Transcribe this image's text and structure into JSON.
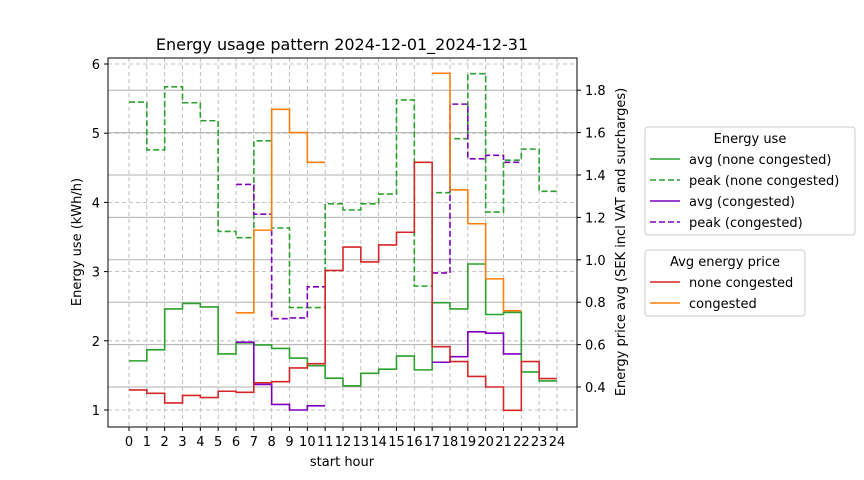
{
  "chart_data": {
    "type": "line",
    "title": "Energy usage pattern 2024-12-01_2024-12-31",
    "xlabel": "start hour",
    "ylabel": "Energy use (kWh/h)",
    "y2label": "Energy price avg (SEK incl VAT and surcharges)",
    "x": [
      0,
      1,
      2,
      3,
      4,
      5,
      6,
      7,
      8,
      9,
      10,
      11,
      12,
      13,
      14,
      15,
      16,
      17,
      18,
      19,
      20,
      21,
      22,
      23
    ],
    "xticks": [
      "0",
      "1",
      "2",
      "3",
      "4",
      "5",
      "6",
      "7",
      "8",
      "9",
      "10",
      "11",
      "12",
      "13",
      "14",
      "15",
      "16",
      "17",
      "18",
      "19",
      "20",
      "21",
      "22",
      "23",
      "24"
    ],
    "yticks": [
      "1",
      "2",
      "3",
      "4",
      "5",
      "6"
    ],
    "y2ticks": [
      "0.4",
      "0.6",
      "0.8",
      "1.0",
      "1.2",
      "1.4",
      "1.6",
      "1.8"
    ],
    "ylim": [
      0.78,
      6.08
    ],
    "y2lim": [
      0.27,
      1.93
    ],
    "grid": true,
    "legends": [
      {
        "title": "Energy use",
        "placement": "right",
        "entries": [
          "avg (none congested)",
          "peak (none congested)",
          "avg (congested)",
          "peak (congested)"
        ]
      },
      {
        "title": "Avg energy price",
        "placement": "right",
        "entries": [
          "none congested",
          "congested"
        ]
      }
    ],
    "series": [
      {
        "name": "avg (none congested)",
        "axis": "left",
        "color": "#2ca02c",
        "dash": false,
        "values": [
          1.71,
          1.87,
          2.46,
          2.54,
          2.49,
          1.81,
          1.97,
          1.94,
          1.89,
          1.75,
          1.64,
          1.46,
          1.35,
          1.53,
          1.59,
          1.78,
          1.58,
          2.55,
          2.46,
          3.11,
          2.38,
          2.41,
          1.55,
          1.42
        ]
      },
      {
        "name": "peak (none congested)",
        "axis": "left",
        "color": "#2ca02c",
        "dash": true,
        "values": [
          5.45,
          4.76,
          5.67,
          5.44,
          5.18,
          3.58,
          3.49,
          4.89,
          3.63,
          2.48,
          2.48,
          3.98,
          3.89,
          3.98,
          4.12,
          5.48,
          2.79,
          4.14,
          4.92,
          5.86,
          3.86,
          4.61,
          4.77,
          4.16
        ]
      },
      {
        "name": "avg (congested)",
        "axis": "left",
        "color": "#7f00bf",
        "dash": false,
        "values": [
          null,
          null,
          null,
          null,
          null,
          null,
          1.98,
          1.37,
          1.08,
          1.0,
          1.06,
          null,
          null,
          null,
          null,
          null,
          null,
          1.69,
          1.77,
          2.13,
          2.11,
          1.81,
          null,
          null
        ]
      },
      {
        "name": "peak (congested)",
        "axis": "left",
        "color": "#7f00bf",
        "dash": true,
        "values": [
          null,
          null,
          null,
          null,
          null,
          null,
          4.26,
          3.83,
          2.32,
          2.33,
          2.78,
          null,
          null,
          null,
          null,
          null,
          null,
          2.98,
          5.42,
          4.63,
          4.68,
          4.58,
          null,
          null
        ]
      },
      {
        "name": "none congested",
        "axis": "right",
        "color": "#d62728",
        "dash": false,
        "values": [
          0.386,
          0.37,
          0.325,
          0.36,
          0.35,
          0.38,
          0.375,
          0.42,
          0.425,
          0.49,
          0.51,
          0.95,
          1.06,
          0.99,
          1.07,
          1.13,
          1.46,
          0.59,
          0.52,
          0.45,
          0.4,
          0.29,
          0.52,
          0.44
        ]
      },
      {
        "name": "congested",
        "axis": "right",
        "color": "#ff7f0e",
        "dash": false,
        "values": [
          null,
          null,
          null,
          null,
          null,
          null,
          0.75,
          1.14,
          1.71,
          1.6,
          1.46,
          null,
          null,
          null,
          null,
          null,
          null,
          1.88,
          1.33,
          1.17,
          0.91,
          0.76,
          null,
          null
        ]
      }
    ]
  }
}
